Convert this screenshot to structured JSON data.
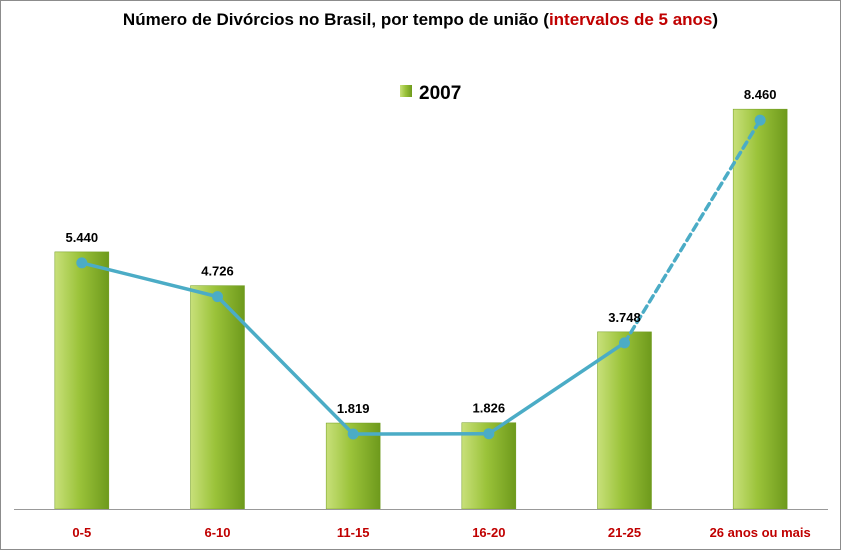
{
  "chart_data": {
    "type": "bar",
    "title": "Número de Divórcios no Brasil, por tempo de união (",
    "title_highlight": "intervalos de 5 anos",
    "title_end": ")",
    "categories": [
      "0-5",
      "6-10",
      "11-15",
      "16-20",
      "21-25",
      "26 anos ou mais"
    ],
    "series": [
      {
        "name": "2007",
        "values": [
          5440,
          4726,
          1819,
          1826,
          3748,
          8460
        ],
        "value_labels": [
          "5.440",
          "4.726",
          "1.819",
          "1.826",
          "3.748",
          "8.460"
        ]
      }
    ],
    "overlay_line": {
      "values": [
        5440,
        4726,
        1819,
        1826,
        3748,
        8460
      ],
      "dashed_last_segment": true
    },
    "xlabel": "",
    "ylabel": "",
    "ylim": [
      0,
      9500
    ],
    "legend": "top-center",
    "grid": false,
    "colors": {
      "bar": "#9bc33a",
      "bar_light": "#c8e07a",
      "bar_dark": "#6e9a1c",
      "line": "#4bacc6",
      "category_label": "#c00000",
      "title_highlight": "#c00000"
    }
  }
}
